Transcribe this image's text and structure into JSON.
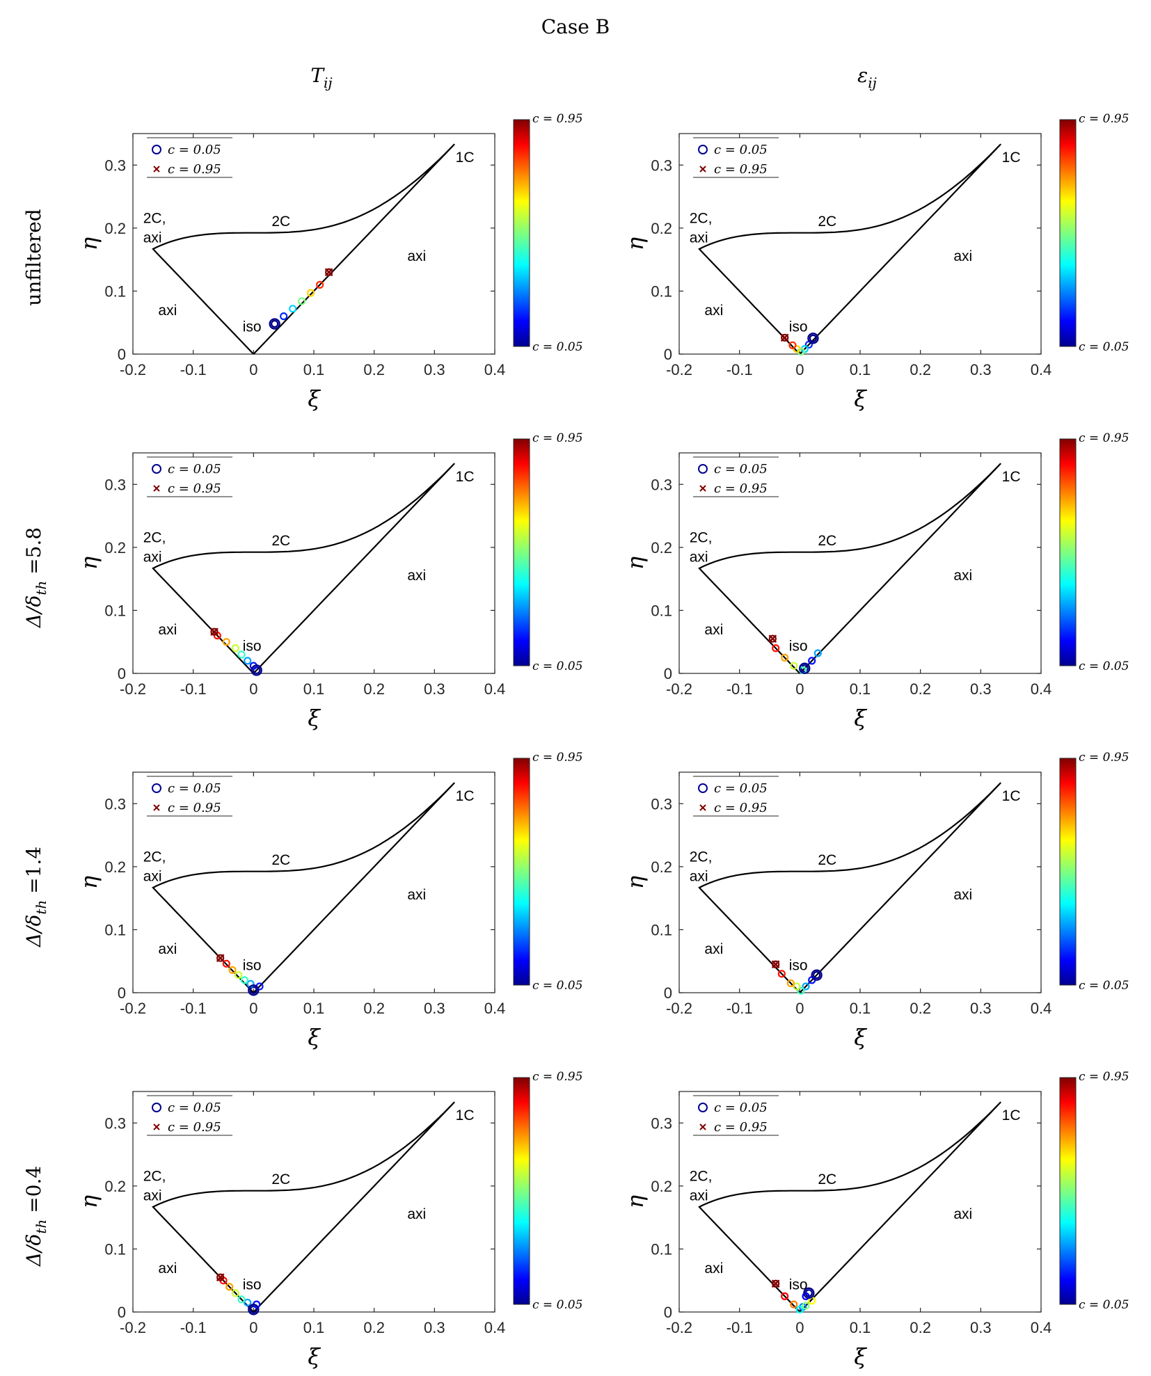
{
  "figure": {
    "title": "Case B",
    "col_titles": [
      "T_ij",
      "ε_ij"
    ],
    "row_labels": [
      "unfiltered",
      "Δ/δ_th =5.8",
      "Δ/δ_th =1.4",
      "Δ/δ_th =0.4"
    ]
  },
  "colors": {
    "axis": "#262626",
    "boundary": "#000000",
    "c_low": "#00008f",
    "c_high": "#800000"
  },
  "chart_data": [
    {
      "row": 0,
      "col": 0,
      "type": "scatter",
      "title": "",
      "row_label": "unfiltered",
      "col_label": "T_ij",
      "xlabel": "ξ",
      "ylabel": "η",
      "xlim": [
        -0.2,
        0.4
      ],
      "ylim": [
        0,
        0.35
      ],
      "xticks": [
        -0.2,
        -0.1,
        0,
        0.1,
        0.2,
        0.3,
        0.4
      ],
      "yticks": [
        0,
        0.1,
        0.2,
        0.3
      ],
      "legend": [
        "c = 0.05",
        "c = 0.95"
      ],
      "colorbar": {
        "min_label": "c = 0.05",
        "max_label": "c = 0.95",
        "range": [
          0.05,
          0.95
        ]
      },
      "region_labels": [
        "1C",
        "2C",
        "2C,",
        "axi",
        "axi",
        "axi",
        "iso"
      ],
      "trajectory": {
        "c_start": 0.05,
        "c_end": 0.95,
        "x": [
          0.035,
          0.05,
          0.065,
          0.08,
          0.095,
          0.11,
          0.125
        ],
        "y": [
          0.048,
          0.06,
          0.072,
          0.084,
          0.097,
          0.11,
          0.13
        ]
      }
    },
    {
      "row": 0,
      "col": 1,
      "type": "scatter",
      "title": "",
      "row_label": "unfiltered",
      "col_label": "ε_ij",
      "xlabel": "ξ",
      "ylabel": "η",
      "xlim": [
        -0.2,
        0.4
      ],
      "ylim": [
        0,
        0.35
      ],
      "xticks": [
        -0.2,
        -0.1,
        0,
        0.1,
        0.2,
        0.3,
        0.4
      ],
      "yticks": [
        0,
        0.1,
        0.2,
        0.3
      ],
      "legend": [
        "c = 0.05",
        "c = 0.95"
      ],
      "colorbar": {
        "min_label": "c = 0.05",
        "max_label": "c = 0.95",
        "range": [
          0.05,
          0.95
        ]
      },
      "region_labels": [
        "1C",
        "2C",
        "2C,",
        "axi",
        "axi",
        "axi",
        "iso"
      ],
      "trajectory": {
        "c_start": 0.05,
        "c_end": 0.95,
        "x": [
          0.022,
          0.015,
          0.008,
          0.002,
          -0.005,
          -0.012,
          -0.025
        ],
        "y": [
          0.025,
          0.015,
          0.008,
          0.004,
          0.008,
          0.014,
          0.026
        ]
      }
    },
    {
      "row": 1,
      "col": 0,
      "type": "scatter",
      "title": "",
      "row_label": "Δ/δ_th =5.8",
      "col_label": "T_ij",
      "xlabel": "ξ",
      "ylabel": "η",
      "xlim": [
        -0.2,
        0.4
      ],
      "ylim": [
        0,
        0.35
      ],
      "xticks": [
        -0.2,
        -0.1,
        0,
        0.1,
        0.2,
        0.3,
        0.4
      ],
      "yticks": [
        0,
        0.1,
        0.2,
        0.3
      ],
      "legend": [
        "c = 0.05",
        "c = 0.95"
      ],
      "colorbar": {
        "min_label": "c = 0.05",
        "max_label": "c = 0.95",
        "range": [
          0.05,
          0.95
        ]
      },
      "region_labels": [
        "1C",
        "2C",
        "2C,",
        "axi",
        "axi",
        "axi",
        "iso"
      ],
      "trajectory": {
        "c_start": 0.05,
        "c_end": 0.95,
        "x": [
          0.005,
          0.0,
          -0.01,
          -0.02,
          -0.03,
          -0.045,
          -0.06,
          -0.065
        ],
        "y": [
          0.005,
          0.012,
          0.02,
          0.03,
          0.04,
          0.05,
          0.06,
          0.066
        ]
      }
    },
    {
      "row": 1,
      "col": 1,
      "type": "scatter",
      "title": "",
      "row_label": "Δ/δ_th =5.8",
      "col_label": "ε_ij",
      "xlabel": "ξ",
      "ylabel": "η",
      "xlim": [
        -0.2,
        0.4
      ],
      "ylim": [
        0,
        0.35
      ],
      "xticks": [
        -0.2,
        -0.1,
        0,
        0.1,
        0.2,
        0.3,
        0.4
      ],
      "yticks": [
        0,
        0.1,
        0.2,
        0.3
      ],
      "legend": [
        "c = 0.05",
        "c = 0.95"
      ],
      "colorbar": {
        "min_label": "c = 0.05",
        "max_label": "c = 0.95",
        "range": [
          0.05,
          0.95
        ]
      },
      "region_labels": [
        "1C",
        "2C",
        "2C,",
        "axi",
        "axi",
        "axi",
        "iso"
      ],
      "trajectory": {
        "c_start": 0.05,
        "c_end": 0.95,
        "x": [
          0.008,
          0.02,
          0.03,
          0.005,
          -0.01,
          -0.025,
          -0.04,
          -0.045
        ],
        "y": [
          0.008,
          0.02,
          0.032,
          0.005,
          0.012,
          0.025,
          0.04,
          0.055
        ]
      }
    },
    {
      "row": 2,
      "col": 0,
      "type": "scatter",
      "title": "",
      "row_label": "Δ/δ_th =1.4",
      "col_label": "T_ij",
      "xlabel": "ξ",
      "ylabel": "η",
      "xlim": [
        -0.2,
        0.4
      ],
      "ylim": [
        0,
        0.35
      ],
      "xticks": [
        -0.2,
        -0.1,
        0,
        0.1,
        0.2,
        0.3,
        0.4
      ],
      "yticks": [
        0,
        0.1,
        0.2,
        0.3
      ],
      "legend": [
        "c = 0.05",
        "c = 0.95"
      ],
      "colorbar": {
        "min_label": "c = 0.05",
        "max_label": "c = 0.95",
        "range": [
          0.05,
          0.95
        ]
      },
      "region_labels": [
        "1C",
        "2C",
        "2C,",
        "axi",
        "axi",
        "axi",
        "iso"
      ],
      "trajectory": {
        "c_start": 0.05,
        "c_end": 0.95,
        "x": [
          0.0,
          0.01,
          -0.005,
          -0.015,
          -0.025,
          -0.035,
          -0.045,
          -0.055
        ],
        "y": [
          0.004,
          0.01,
          0.014,
          0.02,
          0.028,
          0.036,
          0.046,
          0.055
        ]
      }
    },
    {
      "row": 2,
      "col": 1,
      "type": "scatter",
      "title": "",
      "row_label": "Δ/δ_th =1.4",
      "col_label": "ε_ij",
      "xlabel": "ξ",
      "ylabel": "η",
      "xlim": [
        -0.2,
        0.4
      ],
      "ylim": [
        0,
        0.35
      ],
      "xticks": [
        -0.2,
        -0.1,
        0,
        0.1,
        0.2,
        0.3,
        0.4
      ],
      "yticks": [
        0,
        0.1,
        0.2,
        0.3
      ],
      "legend": [
        "c = 0.05",
        "c = 0.95"
      ],
      "colorbar": {
        "min_label": "c = 0.05",
        "max_label": "c = 0.95",
        "range": [
          0.05,
          0.95
        ]
      },
      "region_labels": [
        "1C",
        "2C",
        "2C,",
        "axi",
        "axi",
        "axi",
        "iso"
      ],
      "trajectory": {
        "c_start": 0.05,
        "c_end": 0.95,
        "x": [
          0.028,
          0.02,
          0.01,
          0.002,
          -0.005,
          -0.015,
          -0.03,
          -0.04
        ],
        "y": [
          0.028,
          0.02,
          0.01,
          0.003,
          0.01,
          0.015,
          0.03,
          0.045
        ]
      }
    },
    {
      "row": 3,
      "col": 0,
      "type": "scatter",
      "title": "",
      "row_label": "Δ/δ_th =0.4",
      "col_label": "T_ij",
      "xlabel": "ξ",
      "ylabel": "η",
      "xlim": [
        -0.2,
        0.4
      ],
      "ylim": [
        0,
        0.35
      ],
      "xticks": [
        -0.2,
        -0.1,
        0,
        0.1,
        0.2,
        0.3,
        0.4
      ],
      "yticks": [
        0,
        0.1,
        0.2,
        0.3
      ],
      "legend": [
        "c = 0.05",
        "c = 0.95"
      ],
      "colorbar": {
        "min_label": "c = 0.05",
        "max_label": "c = 0.95",
        "range": [
          0.05,
          0.95
        ]
      },
      "region_labels": [
        "1C",
        "2C",
        "2C,",
        "axi",
        "axi",
        "axi",
        "iso"
      ],
      "trajectory": {
        "c_start": 0.05,
        "c_end": 0.95,
        "x": [
          0.0,
          0.005,
          -0.01,
          -0.02,
          -0.03,
          -0.04,
          -0.05,
          -0.055
        ],
        "y": [
          0.004,
          0.012,
          0.015,
          0.02,
          0.03,
          0.04,
          0.05,
          0.055
        ]
      }
    },
    {
      "row": 3,
      "col": 1,
      "type": "scatter",
      "title": "",
      "row_label": "Δ/δ_th =0.4",
      "col_label": "ε_ij",
      "xlabel": "ξ",
      "ylabel": "η",
      "xlim": [
        -0.2,
        0.4
      ],
      "ylim": [
        0,
        0.35
      ],
      "xticks": [
        -0.2,
        -0.1,
        0,
        0.1,
        0.2,
        0.3,
        0.4
      ],
      "yticks": [
        0,
        0.1,
        0.2,
        0.3
      ],
      "legend": [
        "c = 0.05",
        "c = 0.95"
      ],
      "colorbar": {
        "min_label": "c = 0.05",
        "max_label": "c = 0.95",
        "range": [
          0.05,
          0.95
        ]
      },
      "region_labels": [
        "1C",
        "2C",
        "2C,",
        "axi",
        "axi",
        "axi",
        "iso"
      ],
      "trajectory": {
        "c_start": 0.05,
        "c_end": 0.95,
        "x": [
          0.015,
          0.01,
          0.005,
          0.0,
          0.01,
          0.02,
          -0.01,
          -0.025,
          -0.04
        ],
        "y": [
          0.03,
          0.025,
          0.008,
          0.004,
          0.01,
          0.018,
          0.012,
          0.025,
          0.045
        ]
      }
    }
  ]
}
